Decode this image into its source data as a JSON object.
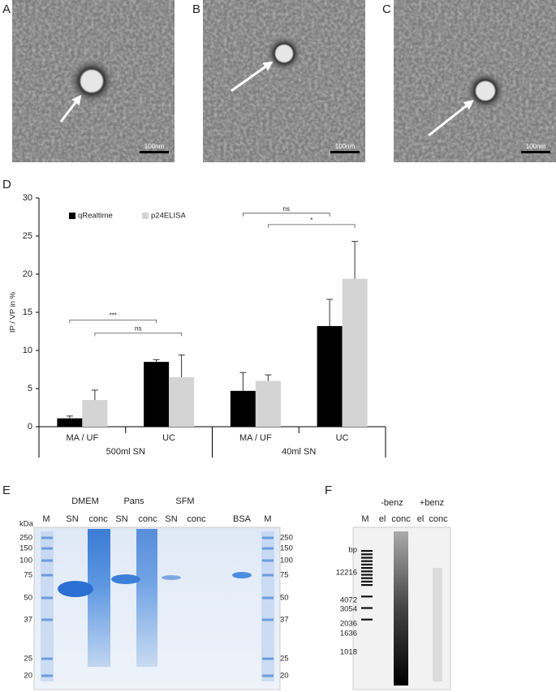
{
  "panels": [
    {
      "label": "A",
      "scale": "100nm"
    },
    {
      "label": "B",
      "scale": "100nm"
    },
    {
      "label": "C",
      "scale": "100nm"
    }
  ],
  "chart_data": {
    "type": "bar",
    "label": "D",
    "categories": [
      "MA / UF",
      "UC",
      "MA / UF",
      "UC"
    ],
    "group_labels": [
      "500ml SN",
      "40ml SN"
    ],
    "y_label": "IP / VP in %",
    "series": [
      {
        "name": "qRealtime",
        "color": "#000000",
        "values": [
          1.1,
          8.5,
          4.7,
          13.2
        ],
        "errors": [
          0.3,
          0.3,
          2.4,
          3.5
        ]
      },
      {
        "name": "p24ELISA",
        "color": "#d4d4d4",
        "values": [
          3.5,
          6.5,
          6.0,
          19.4
        ],
        "errors": [
          1.3,
          2.9,
          0.8,
          4.9
        ]
      }
    ],
    "annotations": [
      {
        "text": "***",
        "y": 14.0
      },
      {
        "text": "ns",
        "y": 12.3
      },
      {
        "text": "ns",
        "y": 28.0
      },
      {
        "text": "*",
        "y": 26.5
      }
    ],
    "ylim": [
      0,
      30
    ],
    "yticks": [
      0,
      5,
      10,
      15,
      20,
      25,
      30
    ]
  },
  "gel_e": {
    "label": "E",
    "groups": [
      "DMEM",
      "Pans",
      "SFM"
    ],
    "lanes": [
      "M",
      "SN",
      "conc",
      "SN",
      "conc",
      "SN",
      "conc",
      "BSA",
      "M"
    ],
    "unit": "kDa",
    "markers": [
      250,
      150,
      100,
      75,
      50,
      37,
      25,
      20
    ]
  },
  "gel_f": {
    "label": "F",
    "groups": [
      "-benz",
      "+benz"
    ],
    "lanes": [
      "M",
      "el",
      "conc",
      "el",
      "conc"
    ],
    "unit": "bp",
    "markers": [
      12216,
      4072,
      3054,
      2036,
      1636,
      1018
    ]
  }
}
